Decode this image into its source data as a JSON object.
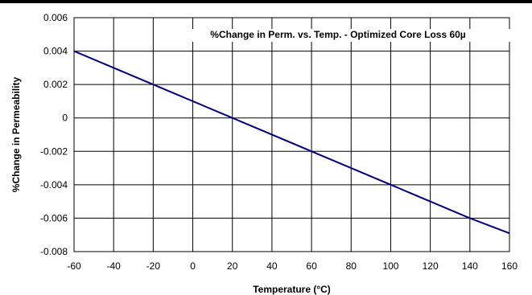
{
  "chart_data": {
    "type": "line",
    "title": "%Change in Perm. vs. Temp. - Optimized Core Loss  60µ",
    "xlabel": "Temperature (°C)",
    "ylabel": "%Change in Permeability",
    "xlim": [
      -60,
      160
    ],
    "ylim": [
      -0.008,
      0.006
    ],
    "xticks": [
      -60,
      -40,
      -20,
      0,
      20,
      40,
      60,
      80,
      100,
      120,
      140,
      160
    ],
    "yticks": [
      -0.008,
      -0.006,
      -0.004,
      -0.002,
      0,
      0.002,
      0.004,
      0.006
    ],
    "xtick_labels": [
      "-60",
      "-40",
      "-20",
      "0",
      "20",
      "40",
      "60",
      "80",
      "100",
      "120",
      "140",
      "160"
    ],
    "ytick_labels": [
      "-0.008",
      "-0.006",
      "-0.004",
      "-0.002",
      "0",
      "0.002",
      "0.004",
      "0.006"
    ],
    "grid": true,
    "series": [
      {
        "x": [
          -60,
          20,
          60,
          100,
          140,
          160
        ],
        "y": [
          0.004,
          0.0,
          -0.002,
          -0.004,
          -0.006,
          -0.0069
        ],
        "color": "#000080"
      }
    ]
  }
}
